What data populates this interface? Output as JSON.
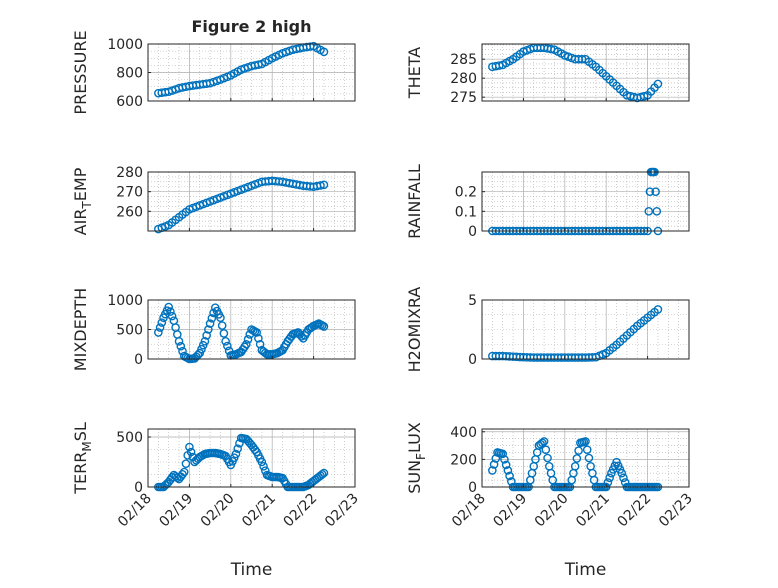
{
  "figure": {
    "title": "Figure 2 high",
    "marker_color": "#0072BD",
    "axis_color": "#262626",
    "grid_color": "#b0b0b0"
  },
  "chart_data": [
    {
      "id": "pressure",
      "type": "scatter",
      "title": "Figure 2 high",
      "ylabel": "PRESSURE",
      "ylim": [
        600,
        1000
      ],
      "yticks": [
        600,
        800,
        1000
      ],
      "xlabel": "",
      "x_tick_labels_visible": false,
      "grid": true,
      "x": [
        "02/18 06:00",
        "02/18 12:00",
        "02/18 18:00",
        "02/19 00:00",
        "02/19 06:00",
        "02/19 12:00",
        "02/19 18:00",
        "02/20 00:00",
        "02/20 06:00",
        "02/20 12:00",
        "02/20 18:00",
        "02/21 00:00",
        "02/21 06:00",
        "02/21 12:00",
        "02/21 18:00",
        "02/22 00:00",
        "02/22 06:00"
      ],
      "y": [
        655,
        665,
        690,
        705,
        715,
        725,
        750,
        780,
        820,
        845,
        860,
        900,
        935,
        960,
        975,
        985,
        945
      ]
    },
    {
      "id": "theta",
      "type": "scatter",
      "title": "",
      "ylabel": "THETA",
      "ylim": [
        274,
        289
      ],
      "yticks": [
        275,
        280,
        285
      ],
      "xlabel": "",
      "x_tick_labels_visible": false,
      "grid": true,
      "x": [
        "02/18 06:00",
        "02/18 12:00",
        "02/18 18:00",
        "02/19 00:00",
        "02/19 06:00",
        "02/19 12:00",
        "02/19 18:00",
        "02/20 00:00",
        "02/20 06:00",
        "02/20 12:00",
        "02/20 18:00",
        "02/21 00:00",
        "02/21 06:00",
        "02/21 12:00",
        "02/21 18:00",
        "02/22 00:00",
        "02/22 06:00"
      ],
      "y": [
        283,
        283.5,
        285,
        287,
        288,
        288,
        287.5,
        286,
        285,
        285,
        283,
        280.5,
        278,
        275.5,
        274.8,
        275.5,
        278.5
      ]
    },
    {
      "id": "air_temp",
      "type": "scatter",
      "title": "",
      "ylabel": "AIR_TEMP",
      "ylim": [
        250,
        280
      ],
      "yticks": [
        260,
        270,
        280
      ],
      "xlabel": "",
      "x_tick_labels_visible": false,
      "grid": true,
      "x": [
        "02/18 06:00",
        "02/18 12:00",
        "02/18 18:00",
        "02/19 00:00",
        "02/19 06:00",
        "02/19 12:00",
        "02/19 18:00",
        "02/20 00:00",
        "02/20 06:00",
        "02/20 12:00",
        "02/20 18:00",
        "02/21 00:00",
        "02/21 06:00",
        "02/21 12:00",
        "02/21 18:00",
        "02/22 00:00",
        "02/22 06:00"
      ],
      "y": [
        251,
        253,
        257,
        261,
        263,
        265,
        267,
        269,
        271,
        273,
        275,
        275.5,
        275,
        274,
        273,
        272.5,
        273.5
      ]
    },
    {
      "id": "rainfall",
      "type": "scatter",
      "title": "",
      "ylabel": "RAINFALL",
      "ylim": [
        0,
        0.3
      ],
      "yticks": [
        0,
        0.1,
        0.2
      ],
      "xlabel": "",
      "x_tick_labels_visible": false,
      "grid": true,
      "x": [
        "02/18 06:00",
        "02/18 12:00",
        "02/18 18:00",
        "02/19 00:00",
        "02/19 06:00",
        "02/19 12:00",
        "02/19 18:00",
        "02/20 00:00",
        "02/20 06:00",
        "02/20 12:00",
        "02/20 18:00",
        "02/21 00:00",
        "02/21 06:00",
        "02/21 12:00",
        "02/21 18:00",
        "02/22 00:00",
        "02/22 02:00",
        "02/22 04:00",
        "02/22 06:00"
      ],
      "y": [
        0,
        0,
        0,
        0,
        0,
        0,
        0,
        0,
        0,
        0,
        0,
        0,
        0,
        0,
        0,
        0,
        0.3,
        0.3,
        0
      ]
    },
    {
      "id": "mixdepth",
      "type": "scatter",
      "title": "",
      "ylabel": "MIXDEPTH",
      "ylim": [
        0,
        1000
      ],
      "yticks": [
        0,
        500,
        1000
      ],
      "xlabel": "",
      "x_tick_labels_visible": false,
      "grid": true,
      "x": [
        "02/18 06:00",
        "02/18 09:00",
        "02/18 12:00",
        "02/18 15:00",
        "02/18 18:00",
        "02/18 21:00",
        "02/19 00:00",
        "02/19 03:00",
        "02/19 06:00",
        "02/19 09:00",
        "02/19 12:00",
        "02/19 15:00",
        "02/19 18:00",
        "02/19 21:00",
        "02/20 00:00",
        "02/20 03:00",
        "02/20 06:00",
        "02/20 09:00",
        "02/20 12:00",
        "02/20 15:00",
        "02/20 18:00",
        "02/20 21:00",
        "02/21 00:00",
        "02/21 03:00",
        "02/21 06:00",
        "02/21 09:00",
        "02/21 12:00",
        "02/21 15:00",
        "02/21 18:00",
        "02/21 21:00",
        "02/22 00:00",
        "02/22 03:00",
        "02/22 06:00"
      ],
      "y": [
        450,
        700,
        880,
        650,
        300,
        50,
        0,
        10,
        100,
        300,
        600,
        870,
        700,
        300,
        60,
        80,
        120,
        250,
        500,
        450,
        150,
        80,
        80,
        100,
        150,
        300,
        420,
        450,
        350,
        500,
        560,
        600,
        550
      ]
    },
    {
      "id": "h2omixra",
      "type": "scatter",
      "title": "",
      "ylabel": "H2OMIXRA",
      "ylim": [
        0,
        5
      ],
      "yticks": [
        0,
        5
      ],
      "xlabel": "",
      "x_tick_labels_visible": false,
      "grid": true,
      "x": [
        "02/18 06:00",
        "02/18 12:00",
        "02/18 18:00",
        "02/19 00:00",
        "02/19 06:00",
        "02/19 12:00",
        "02/19 18:00",
        "02/20 00:00",
        "02/20 06:00",
        "02/20 12:00",
        "02/20 18:00",
        "02/21 00:00",
        "02/21 06:00",
        "02/21 12:00",
        "02/21 18:00",
        "02/22 00:00",
        "02/22 06:00"
      ],
      "y": [
        0.25,
        0.25,
        0.2,
        0.15,
        0.12,
        0.12,
        0.12,
        0.12,
        0.12,
        0.12,
        0.15,
        0.5,
        1.2,
        2.0,
        2.8,
        3.5,
        4.2
      ]
    },
    {
      "id": "terr_msl",
      "type": "scatter",
      "title": "",
      "ylabel": "TERR_MSL",
      "ylim": [
        0,
        580
      ],
      "yticks": [
        0,
        500
      ],
      "xlabel": "Time",
      "x_tick_labels_visible": true,
      "grid": true,
      "x": [
        "02/18 06:00",
        "02/18 09:00",
        "02/18 12:00",
        "02/18 15:00",
        "02/18 18:00",
        "02/18 21:00",
        "02/19 00:00",
        "02/19 03:00",
        "02/19 06:00",
        "02/19 09:00",
        "02/19 12:00",
        "02/19 15:00",
        "02/19 18:00",
        "02/19 21:00",
        "02/20 00:00",
        "02/20 03:00",
        "02/20 06:00",
        "02/20 09:00",
        "02/20 12:00",
        "02/20 15:00",
        "02/20 18:00",
        "02/20 21:00",
        "02/21 00:00",
        "02/21 03:00",
        "02/21 06:00",
        "02/21 09:00",
        "02/21 12:00",
        "02/21 15:00",
        "02/21 18:00",
        "02/21 21:00",
        "02/22 00:00",
        "02/22 03:00",
        "02/22 06:00"
      ],
      "y": [
        0,
        0,
        50,
        120,
        80,
        150,
        400,
        250,
        300,
        330,
        340,
        340,
        330,
        310,
        220,
        330,
        490,
        480,
        420,
        350,
        250,
        120,
        100,
        100,
        90,
        0,
        0,
        0,
        0,
        20,
        60,
        100,
        140
      ]
    },
    {
      "id": "sun_flux",
      "type": "scatter",
      "title": "",
      "ylabel": "SUN_FLUX",
      "ylim": [
        0,
        420
      ],
      "yticks": [
        0,
        200,
        400
      ],
      "xlabel": "Time",
      "x_tick_labels_visible": true,
      "grid": true,
      "x": [
        "02/18 06:00",
        "02/18 09:00",
        "02/18 12:00",
        "02/18 15:00",
        "02/18 18:00",
        "02/18 21:00",
        "02/19 00:00",
        "02/19 03:00",
        "02/19 06:00",
        "02/19 09:00",
        "02/19 12:00",
        "02/19 15:00",
        "02/19 18:00",
        "02/19 21:00",
        "02/20 00:00",
        "02/20 03:00",
        "02/20 06:00",
        "02/20 09:00",
        "02/20 12:00",
        "02/20 15:00",
        "02/20 18:00",
        "02/20 21:00",
        "02/21 00:00",
        "02/21 03:00",
        "02/21 06:00",
        "02/21 09:00",
        "02/21 12:00",
        "02/21 15:00",
        "02/21 18:00",
        "02/21 21:00",
        "02/22 00:00",
        "02/22 03:00",
        "02/22 06:00"
      ],
      "y": [
        120,
        250,
        240,
        120,
        0,
        0,
        0,
        0,
        150,
        300,
        330,
        150,
        0,
        0,
        0,
        0,
        150,
        320,
        330,
        150,
        0,
        0,
        0,
        100,
        180,
        100,
        0,
        0,
        0,
        0,
        0,
        0,
        0
      ]
    }
  ],
  "x_axis": {
    "xlim": [
      "02/18",
      "02/23"
    ],
    "ticks": [
      "02/18",
      "02/19",
      "02/20",
      "02/21",
      "02/22",
      "02/23"
    ]
  }
}
